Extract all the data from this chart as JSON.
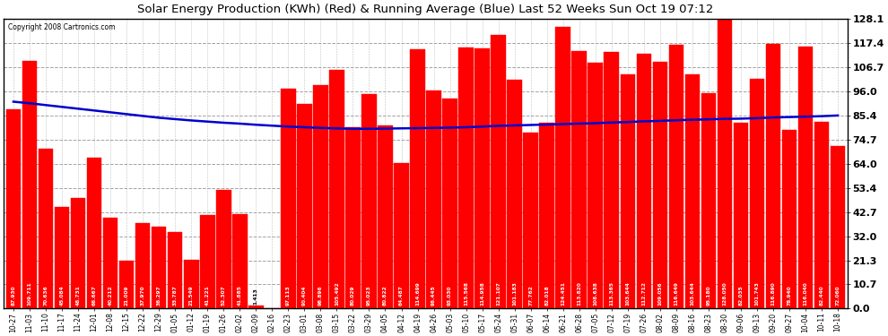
{
  "title": "Solar Energy Production (KWh) (Red) & Running Average (Blue) Last 52 Weeks Sun Oct 19 07:12",
  "copyright": "Copyright 2008 Cartronics.com",
  "bar_color": "#ff0000",
  "line_color": "#0000cc",
  "background_color": "#ffffff",
  "plot_bg_color": "#ffffff",
  "grid_color": "#999999",
  "yticks": [
    0.0,
    10.7,
    21.3,
    32.0,
    42.7,
    53.4,
    64.0,
    74.7,
    85.4,
    96.0,
    106.7,
    117.4,
    128.1
  ],
  "categories": [
    "10-27",
    "11-03",
    "11-10",
    "11-17",
    "11-24",
    "12-01",
    "12-08",
    "12-15",
    "12-22",
    "12-29",
    "01-05",
    "01-12",
    "01-19",
    "01-26",
    "02-02",
    "02-09",
    "02-16",
    "02-23",
    "03-01",
    "03-08",
    "03-15",
    "03-22",
    "03-29",
    "04-05",
    "04-12",
    "04-19",
    "04-26",
    "05-03",
    "05-10",
    "05-17",
    "05-24",
    "05-31",
    "06-07",
    "06-14",
    "06-21",
    "06-28",
    "07-05",
    "07-12",
    "07-19",
    "07-26",
    "08-02",
    "08-09",
    "08-16",
    "08-23",
    "08-30",
    "09-06",
    "09-13",
    "09-20",
    "09-27",
    "10-04",
    "10-11",
    "10-18"
  ],
  "values": [
    87.93,
    109.711,
    70.636,
    45.084,
    48.731,
    66.667,
    40.212,
    21.009,
    37.97,
    36.297,
    33.787,
    21.549,
    41.221,
    52.307,
    41.885,
    1.413,
    0.0,
    97.113,
    90.404,
    98.896,
    105.492,
    80.029,
    95.023,
    80.822,
    64.487,
    114.699,
    96.445,
    93.03,
    115.568,
    114.958,
    121.107,
    101.183,
    77.762,
    82.018,
    124.451,
    113.82,
    108.638,
    113.365,
    103.644,
    112.712,
    109.056,
    116.649,
    103.644,
    95.18,
    128.05,
    82.035,
    101.743,
    116.89,
    78.94,
    116.04,
    82.44,
    72.06
  ],
  "running_avg": [
    91.5,
    90.8,
    90.0,
    89.2,
    88.4,
    87.6,
    86.8,
    86.0,
    85.2,
    84.4,
    83.8,
    83.2,
    82.7,
    82.2,
    81.8,
    81.3,
    80.9,
    80.5,
    80.2,
    79.9,
    79.7,
    79.5,
    79.5,
    79.6,
    79.7,
    79.8,
    79.9,
    80.0,
    80.2,
    80.5,
    80.8,
    81.0,
    81.2,
    81.4,
    81.6,
    81.8,
    82.0,
    82.3,
    82.5,
    82.8,
    83.0,
    83.3,
    83.5,
    83.7,
    83.9,
    84.0,
    84.2,
    84.5,
    84.7,
    84.9,
    85.1,
    85.4
  ],
  "ymin": 0.0,
  "ymax": 128.1
}
